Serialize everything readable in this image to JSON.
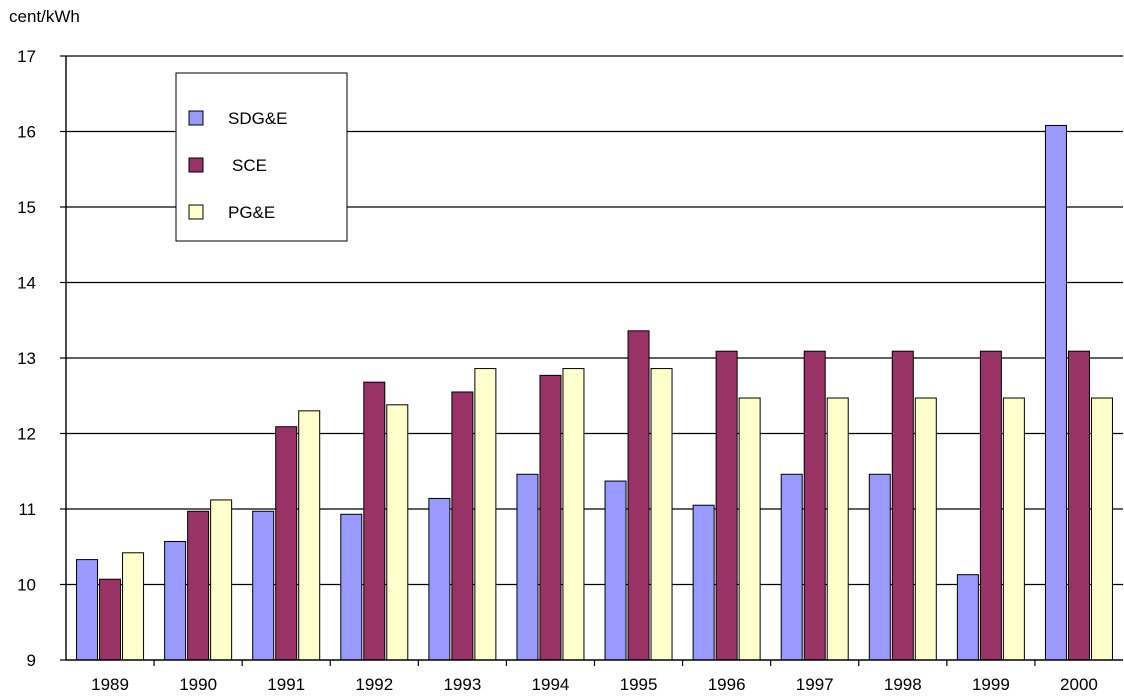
{
  "chart_data": {
    "type": "bar",
    "title": "",
    "xlabel": "",
    "ylabel": "cent/kWh",
    "ylim": [
      9,
      17
    ],
    "yticks": [
      9,
      10,
      11,
      12,
      13,
      14,
      15,
      16,
      17
    ],
    "grid": "horizontal",
    "legend_position": "top-left",
    "categories": [
      "1989",
      "1990",
      "1991",
      "1992",
      "1993",
      "1994",
      "1995",
      "1996",
      "1997",
      "1998",
      "1999",
      "2000"
    ],
    "series": [
      {
        "name": "SDG&E",
        "color": "#9999ff",
        "values": [
          10.33,
          10.57,
          10.97,
          10.93,
          11.14,
          11.46,
          11.37,
          11.05,
          11.46,
          11.46,
          10.13,
          16.08
        ]
      },
      {
        "name": "SCE",
        "color": "#993366",
        "values": [
          10.07,
          10.97,
          12.09,
          12.68,
          12.55,
          12.77,
          13.36,
          13.09,
          13.09,
          13.09,
          13.09,
          13.09
        ]
      },
      {
        "name": "PG&E",
        "color": "#ffffcc",
        "values": [
          10.42,
          11.12,
          12.3,
          12.38,
          12.86,
          12.86,
          12.86,
          12.47,
          12.47,
          12.47,
          12.47,
          12.47
        ]
      }
    ]
  }
}
